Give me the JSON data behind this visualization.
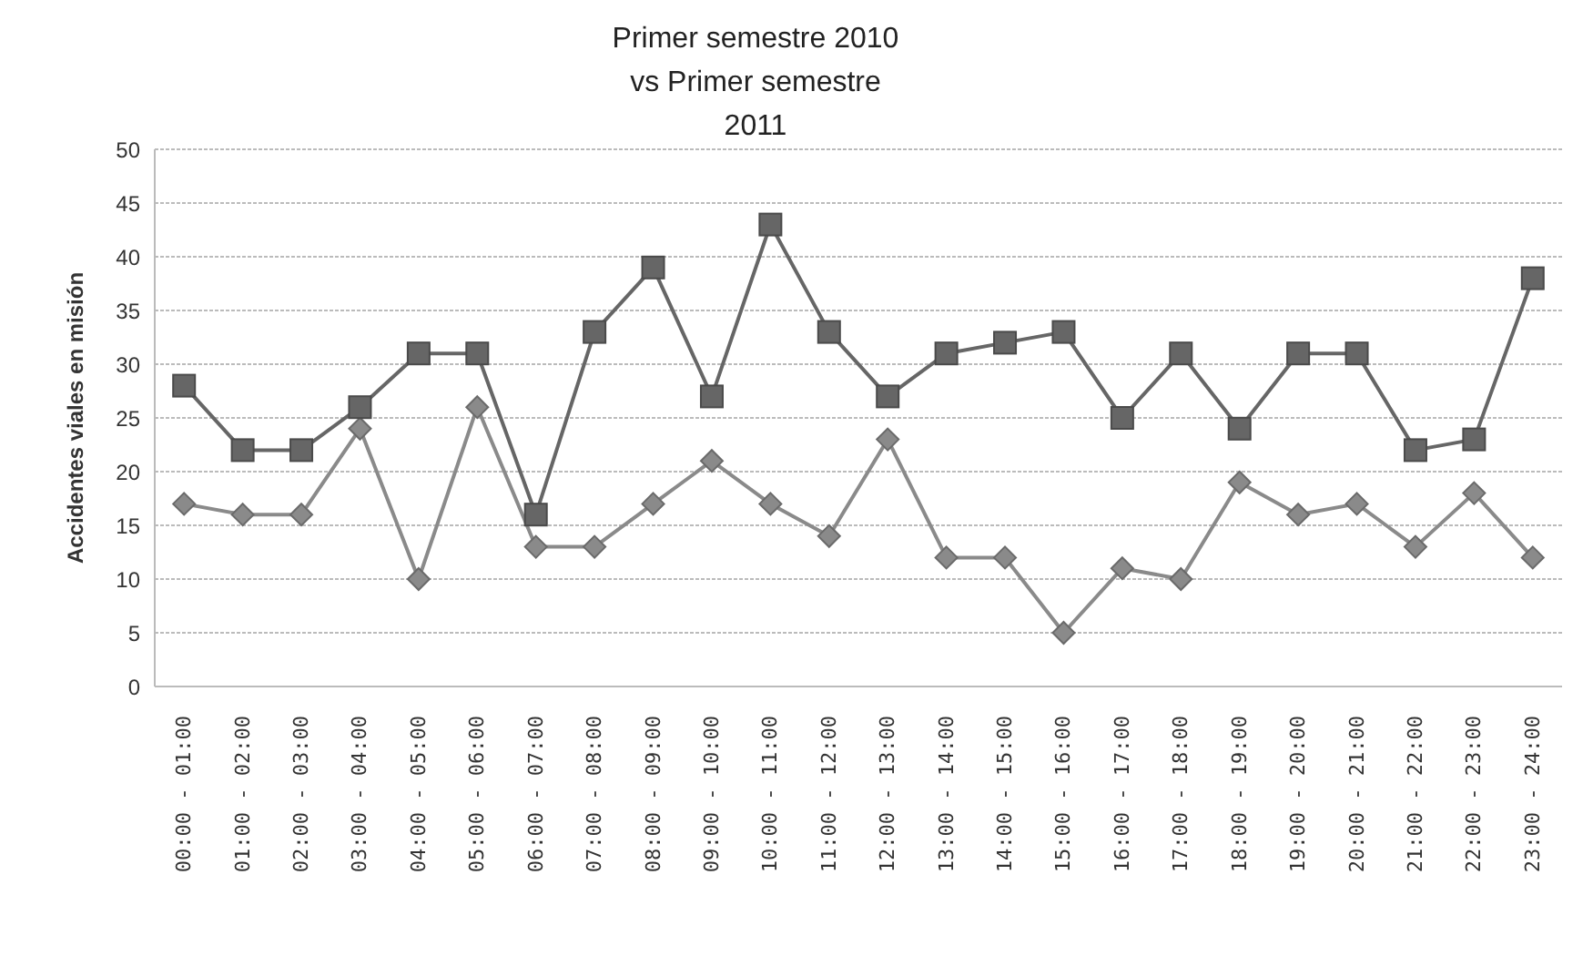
{
  "chart_data": {
    "type": "line",
    "title": "Primer semestre 2010 vs Primer semestre 2011",
    "ylabel": "Accidentes viales en misión",
    "categories": [
      "00:00 - 01:00",
      "01:00 - 02:00",
      "02:00 - 03:00",
      "03:00 - 04:00",
      "04:00 - 05:00",
      "05:00 - 06:00",
      "06:00 - 07:00",
      "07:00 - 08:00",
      "08:00 - 09:00",
      "09:00 - 10:00",
      "10:00 - 11:00",
      "11:00 - 12:00",
      "12:00 - 13:00",
      "13:00 - 14:00",
      "14:00 - 15:00",
      "15:00 - 16:00",
      "16:00 - 17:00",
      "17:00 - 18:00",
      "18:00 - 19:00",
      "19:00 - 20:00",
      "20:00 - 21:00",
      "21:00 - 22:00",
      "22:00 - 23:00",
      "23:00 - 24:00"
    ],
    "series": [
      {
        "color": "#8a8a8a",
        "marker": "diamond",
        "values": [
          17,
          16,
          16,
          24,
          10,
          26,
          13,
          13,
          17,
          21,
          17,
          14,
          23,
          12,
          12,
          5,
          11,
          10,
          19,
          16,
          17,
          13,
          18,
          12
        ]
      },
      {
        "color": "#666666",
        "marker": "square",
        "values": [
          28,
          22,
          22,
          26,
          31,
          31,
          16,
          33,
          39,
          27,
          43,
          33,
          27,
          31,
          32,
          33,
          25,
          31,
          24,
          31,
          31,
          22,
          23,
          38
        ]
      }
    ],
    "ylim": [
      0,
      50
    ],
    "yticks": [
      0,
      5,
      10,
      15,
      20,
      25,
      30,
      35,
      40,
      45,
      50
    ],
    "grid": "y",
    "line_style": "solid"
  }
}
